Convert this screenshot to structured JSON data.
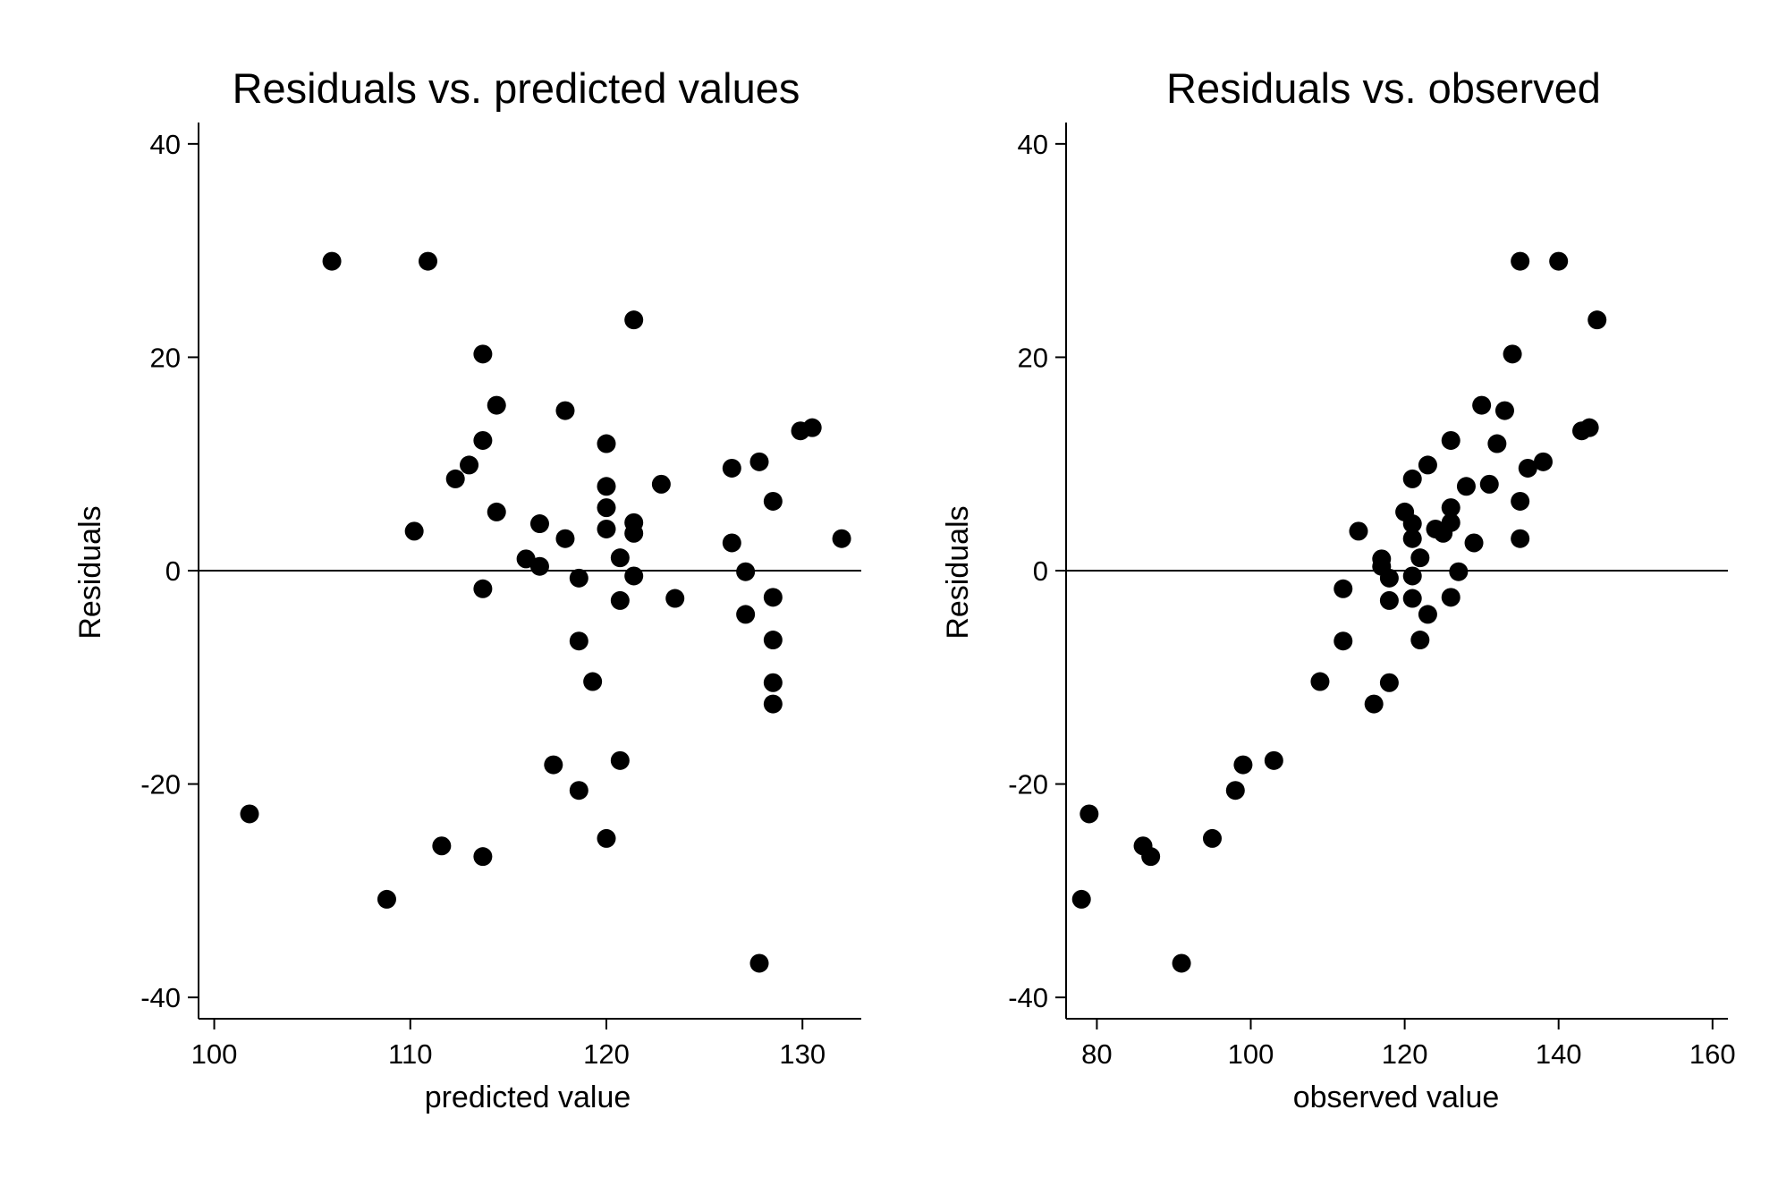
{
  "chart_data": [
    {
      "type": "scatter",
      "title": "Residuals vs. predicted values",
      "xlabel": "predicted value",
      "ylabel": "Residuals",
      "xlim": [
        99.2,
        133.0
      ],
      "ylim": [
        -42,
        42
      ],
      "xticks": [
        100,
        110,
        120,
        130
      ],
      "yticks": [
        -40,
        -20,
        0,
        20,
        40
      ],
      "xtick_labels": [
        "100",
        "110",
        "120",
        "130"
      ],
      "ytick_labels": [
        "-40",
        "-20",
        "0",
        "20",
        "40"
      ],
      "reference_line_y": 0,
      "grid": false,
      "marker_color": "#000000",
      "points": [
        {
          "x": 101.8,
          "y": -22.8
        },
        {
          "x": 106.0,
          "y": 29.0
        },
        {
          "x": 108.8,
          "y": -30.8
        },
        {
          "x": 110.2,
          "y": 3.7
        },
        {
          "x": 110.9,
          "y": 29.0
        },
        {
          "x": 111.6,
          "y": -25.8
        },
        {
          "x": 112.3,
          "y": 8.6
        },
        {
          "x": 113.0,
          "y": 9.9
        },
        {
          "x": 113.7,
          "y": 20.3
        },
        {
          "x": 113.7,
          "y": 12.2
        },
        {
          "x": 113.7,
          "y": -1.7
        },
        {
          "x": 113.7,
          "y": -26.8
        },
        {
          "x": 114.4,
          "y": 15.5
        },
        {
          "x": 114.4,
          "y": 5.5
        },
        {
          "x": 115.9,
          "y": 1.1
        },
        {
          "x": 116.6,
          "y": 4.4
        },
        {
          "x": 116.6,
          "y": 0.4
        },
        {
          "x": 117.3,
          "y": -18.2
        },
        {
          "x": 117.9,
          "y": 15.0
        },
        {
          "x": 117.9,
          "y": 3.0
        },
        {
          "x": 118.6,
          "y": -0.7
        },
        {
          "x": 118.6,
          "y": -6.6
        },
        {
          "x": 118.6,
          "y": -20.6
        },
        {
          "x": 119.3,
          "y": -10.4
        },
        {
          "x": 120.0,
          "y": 11.9
        },
        {
          "x": 120.0,
          "y": 7.9
        },
        {
          "x": 120.0,
          "y": 5.9
        },
        {
          "x": 120.0,
          "y": 3.9
        },
        {
          "x": 120.0,
          "y": -25.1
        },
        {
          "x": 120.7,
          "y": 1.2
        },
        {
          "x": 120.7,
          "y": -2.8
        },
        {
          "x": 120.7,
          "y": -17.8
        },
        {
          "x": 121.4,
          "y": 23.5
        },
        {
          "x": 121.4,
          "y": 4.5
        },
        {
          "x": 121.4,
          "y": 3.5
        },
        {
          "x": 121.4,
          "y": -0.5
        },
        {
          "x": 122.8,
          "y": 8.1
        },
        {
          "x": 123.5,
          "y": -2.6
        },
        {
          "x": 126.4,
          "y": 9.6
        },
        {
          "x": 126.4,
          "y": 2.6
        },
        {
          "x": 127.1,
          "y": -0.1
        },
        {
          "x": 127.1,
          "y": -4.1
        },
        {
          "x": 127.8,
          "y": 10.2
        },
        {
          "x": 127.8,
          "y": -36.8
        },
        {
          "x": 128.5,
          "y": 6.5
        },
        {
          "x": 128.5,
          "y": -2.5
        },
        {
          "x": 128.5,
          "y": -6.5
        },
        {
          "x": 128.5,
          "y": -10.5
        },
        {
          "x": 128.5,
          "y": -12.5
        },
        {
          "x": 129.9,
          "y": 13.1
        },
        {
          "x": 130.5,
          "y": 13.4
        },
        {
          "x": 132.0,
          "y": 3.0
        }
      ]
    },
    {
      "type": "scatter",
      "title": "Residuals vs. observed",
      "xlabel": "observed value",
      "ylabel": "Residuals",
      "xlim": [
        76.0,
        162.0
      ],
      "ylim": [
        -42,
        42
      ],
      "xticks": [
        80,
        100,
        120,
        140,
        160
      ],
      "yticks": [
        -40,
        -20,
        0,
        20,
        40
      ],
      "xtick_labels": [
        "80",
        "100",
        "120",
        "140",
        "160"
      ],
      "ytick_labels": [
        "-40",
        "-20",
        "0",
        "20",
        "40"
      ],
      "reference_line_y": 0,
      "grid": false,
      "marker_color": "#000000",
      "points": [
        {
          "x": 78,
          "y": -30.8
        },
        {
          "x": 79,
          "y": -22.8
        },
        {
          "x": 86,
          "y": -25.8
        },
        {
          "x": 87,
          "y": -26.8
        },
        {
          "x": 91,
          "y": -36.8
        },
        {
          "x": 95,
          "y": -25.1
        },
        {
          "x": 98,
          "y": -20.6
        },
        {
          "x": 99,
          "y": -18.2
        },
        {
          "x": 103,
          "y": -17.8
        },
        {
          "x": 109,
          "y": -10.4
        },
        {
          "x": 112,
          "y": -1.7
        },
        {
          "x": 112,
          "y": -6.6
        },
        {
          "x": 114,
          "y": 3.7
        },
        {
          "x": 116,
          "y": -12.5
        },
        {
          "x": 117,
          "y": 1.1
        },
        {
          "x": 117,
          "y": 0.4
        },
        {
          "x": 118,
          "y": -0.7
        },
        {
          "x": 118,
          "y": -2.8
        },
        {
          "x": 118,
          "y": -10.5
        },
        {
          "x": 120,
          "y": 5.5
        },
        {
          "x": 121,
          "y": 8.6
        },
        {
          "x": 121,
          "y": 4.4
        },
        {
          "x": 121,
          "y": 3.0
        },
        {
          "x": 121,
          "y": -0.5
        },
        {
          "x": 121,
          "y": -2.6
        },
        {
          "x": 122,
          "y": 1.2
        },
        {
          "x": 122,
          "y": -6.5
        },
        {
          "x": 123,
          "y": 9.9
        },
        {
          "x": 123,
          "y": -4.1
        },
        {
          "x": 124,
          "y": 3.9
        },
        {
          "x": 125,
          "y": 3.5
        },
        {
          "x": 126,
          "y": 12.2
        },
        {
          "x": 126,
          "y": 5.9
        },
        {
          "x": 126,
          "y": 4.5
        },
        {
          "x": 126,
          "y": -2.5
        },
        {
          "x": 127,
          "y": -0.1
        },
        {
          "x": 128,
          "y": 7.9
        },
        {
          "x": 129,
          "y": 2.6
        },
        {
          "x": 130,
          "y": 15.5
        },
        {
          "x": 131,
          "y": 8.1
        },
        {
          "x": 132,
          "y": 11.9
        },
        {
          "x": 133,
          "y": 15.0
        },
        {
          "x": 134,
          "y": 20.3
        },
        {
          "x": 135,
          "y": 29.0
        },
        {
          "x": 135,
          "y": 6.5
        },
        {
          "x": 135,
          "y": 3.0
        },
        {
          "x": 136,
          "y": 9.6
        },
        {
          "x": 138,
          "y": 10.2
        },
        {
          "x": 140,
          "y": 29.0
        },
        {
          "x": 143,
          "y": 13.1
        },
        {
          "x": 144,
          "y": 13.4
        },
        {
          "x": 145,
          "y": 23.5
        }
      ]
    }
  ]
}
